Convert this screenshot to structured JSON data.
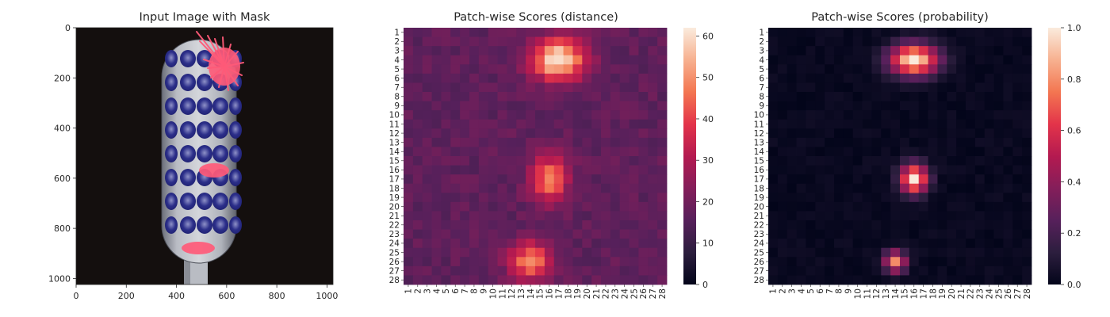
{
  "chart_data": [
    {
      "type": "image",
      "title": "Input Image with Mask",
      "x_ticks": [
        "0",
        "200",
        "400",
        "600",
        "800",
        "1000"
      ],
      "y_ticks": [
        "0",
        "200",
        "400",
        "600",
        "800",
        "1000"
      ],
      "xlim": [
        0,
        1024
      ],
      "ylim": [
        1024,
        0
      ],
      "mask_color": "#ff5a78",
      "mask_regions": [
        "bristle-tuft top-right",
        "center-left spot",
        "bottom-left spot"
      ]
    },
    {
      "type": "heatmap",
      "title": "Patch-wise Scores (distance)",
      "rows": [
        "1",
        "2",
        "3",
        "4",
        "5",
        "6",
        "7",
        "8",
        "9",
        "10",
        "11",
        "12",
        "13",
        "14",
        "15",
        "16",
        "17",
        "18",
        "19",
        "20",
        "21",
        "22",
        "23",
        "24",
        "25",
        "26",
        "27",
        "28"
      ],
      "cols": [
        "1",
        "2",
        "3",
        "4",
        "5",
        "6",
        "7",
        "8",
        "9",
        "10",
        "11",
        "12",
        "13",
        "14",
        "15",
        "16",
        "17",
        "18",
        "19",
        "20",
        "21",
        "22",
        "23",
        "24",
        "25",
        "26",
        "27",
        "28"
      ],
      "colormap": "rocket",
      "vmin": 0,
      "vmax": 62,
      "colorbar_ticks": [
        "0",
        "10",
        "20",
        "30",
        "40",
        "50",
        "60"
      ],
      "base_value": 17,
      "hotspots": [
        {
          "row": 4,
          "col": 17,
          "peak": 62,
          "sigma_row": 1.6,
          "sigma_col": 2.0
        },
        {
          "row": 17,
          "col": 16,
          "peak": 48,
          "sigma_row": 1.8,
          "sigma_col": 1.4
        },
        {
          "row": 26,
          "col": 14,
          "peak": 48,
          "sigma_row": 1.5,
          "sigma_col": 1.6
        }
      ]
    },
    {
      "type": "heatmap",
      "title": "Patch-wise Scores (probability)",
      "rows": [
        "1",
        "2",
        "3",
        "4",
        "5",
        "6",
        "7",
        "8",
        "9",
        "10",
        "11",
        "12",
        "13",
        "14",
        "15",
        "16",
        "17",
        "18",
        "19",
        "20",
        "21",
        "22",
        "23",
        "24",
        "25",
        "26",
        "27",
        "28"
      ],
      "cols": [
        "1",
        "2",
        "3",
        "4",
        "5",
        "6",
        "7",
        "8",
        "9",
        "10",
        "11",
        "12",
        "13",
        "14",
        "15",
        "16",
        "17",
        "18",
        "19",
        "20",
        "21",
        "22",
        "23",
        "24",
        "25",
        "26",
        "27",
        "28"
      ],
      "colormap": "rocket",
      "vmin": 0,
      "vmax": 1,
      "colorbar_ticks": [
        "0.0",
        "0.2",
        "0.4",
        "0.6",
        "0.8",
        "1.0"
      ],
      "base_value": 0.02,
      "hotspots": [
        {
          "row": 4,
          "col": 16,
          "peak": 1.0,
          "sigma_row": 1.2,
          "sigma_col": 1.8
        },
        {
          "row": 17,
          "col": 16,
          "peak": 1.0,
          "sigma_row": 1.1,
          "sigma_col": 1.0
        },
        {
          "row": 26,
          "col": 14,
          "peak": 0.8,
          "sigma_row": 0.8,
          "sigma_col": 0.8
        }
      ]
    }
  ]
}
